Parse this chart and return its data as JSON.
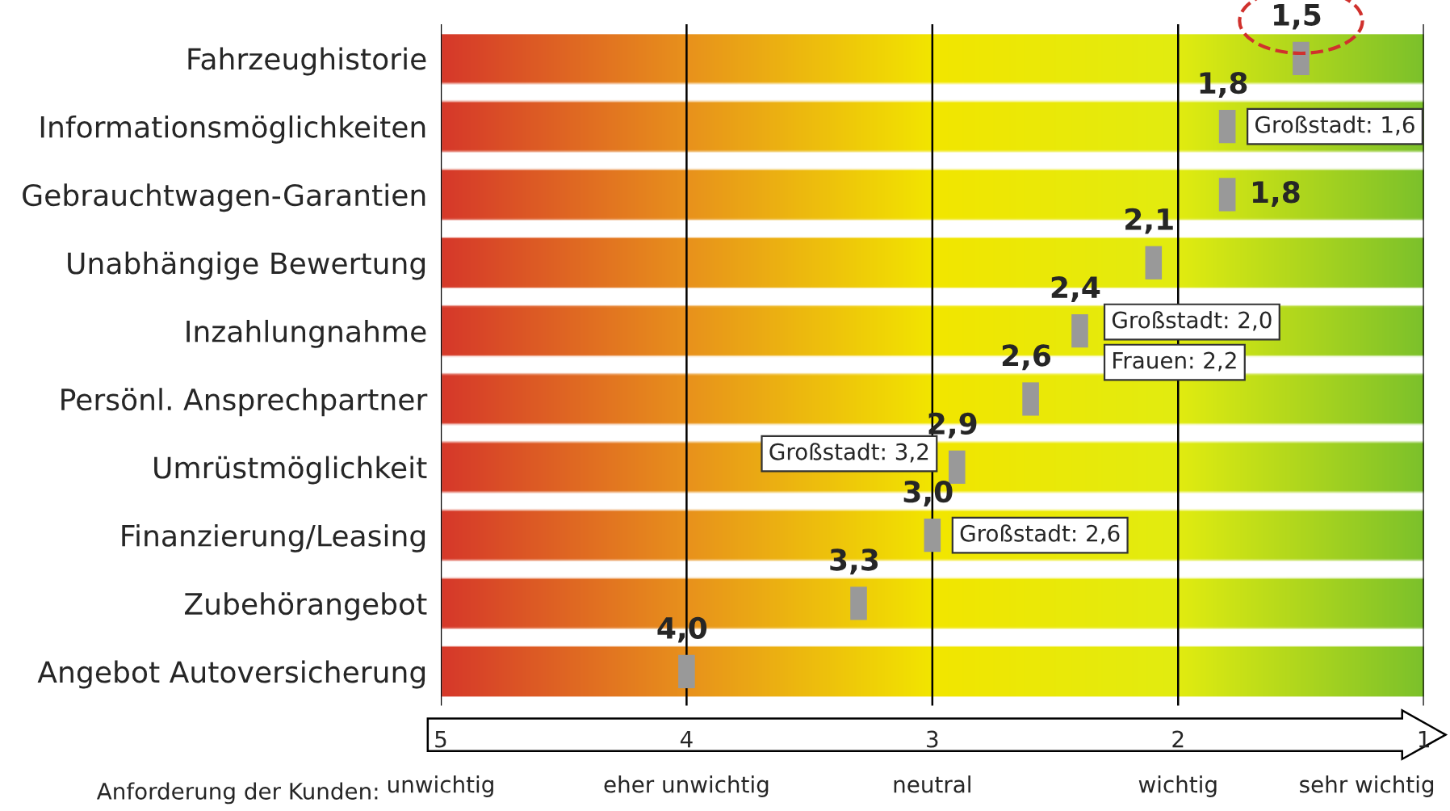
{
  "chart_data": {
    "type": "scatter",
    "orientation": "horizontal",
    "categories": [
      "Fahrzeughistorie",
      "Informationsmöglichkeiten",
      "Gebrauchtwagen-Garantien",
      "Unabhängige Bewertung",
      "Inzahlungnahme",
      "Persönl. Ansprechpartner",
      "Umrüstmöglichkeit",
      "Finanzierung/Leasing",
      "Zubehörangebot",
      "Angebot Autoversicherung"
    ],
    "series": [
      {
        "color": "#999999",
        "values": [
          1.5,
          1.8,
          1.8,
          2.1,
          2.4,
          2.6,
          2.9,
          3.0,
          3.3,
          4.0
        ],
        "value_labels": [
          "1,5",
          "1,8",
          "1,8",
          "2,1",
          "2,4",
          "2,6",
          "2,9",
          "3,0",
          "3,3",
          "4,0"
        ]
      }
    ],
    "marker": "square",
    "xlim": [
      5,
      1
    ],
    "xticks": [
      5,
      4,
      3,
      2,
      1
    ],
    "grid": "x",
    "annotations": [
      {
        "text": "Großstadt: 1,6",
        "x": 1.8,
        "y": "Informationsmöglichkeiten"
      },
      {
        "text": "Großstadt: 2,0",
        "x": 2.4,
        "y": "Inzahlungnahme"
      },
      {
        "text": "Frauen: 2,2",
        "x": 2.4,
        "y": "Inzahlungnahme"
      },
      {
        "text": "Großstadt: 3,2",
        "x": 2.9,
        "y": "Umrüstmöglichkeit"
      },
      {
        "text": "Großstadt: 2,6",
        "x": 3.0,
        "y": "Finanzierung/Leasing"
      },
      "Anforderung der Kunden:",
      "unwichtig",
      "eher unwichtig",
      "neutral",
      "wichtig",
      "sehr wichtig"
    ]
  }
}
